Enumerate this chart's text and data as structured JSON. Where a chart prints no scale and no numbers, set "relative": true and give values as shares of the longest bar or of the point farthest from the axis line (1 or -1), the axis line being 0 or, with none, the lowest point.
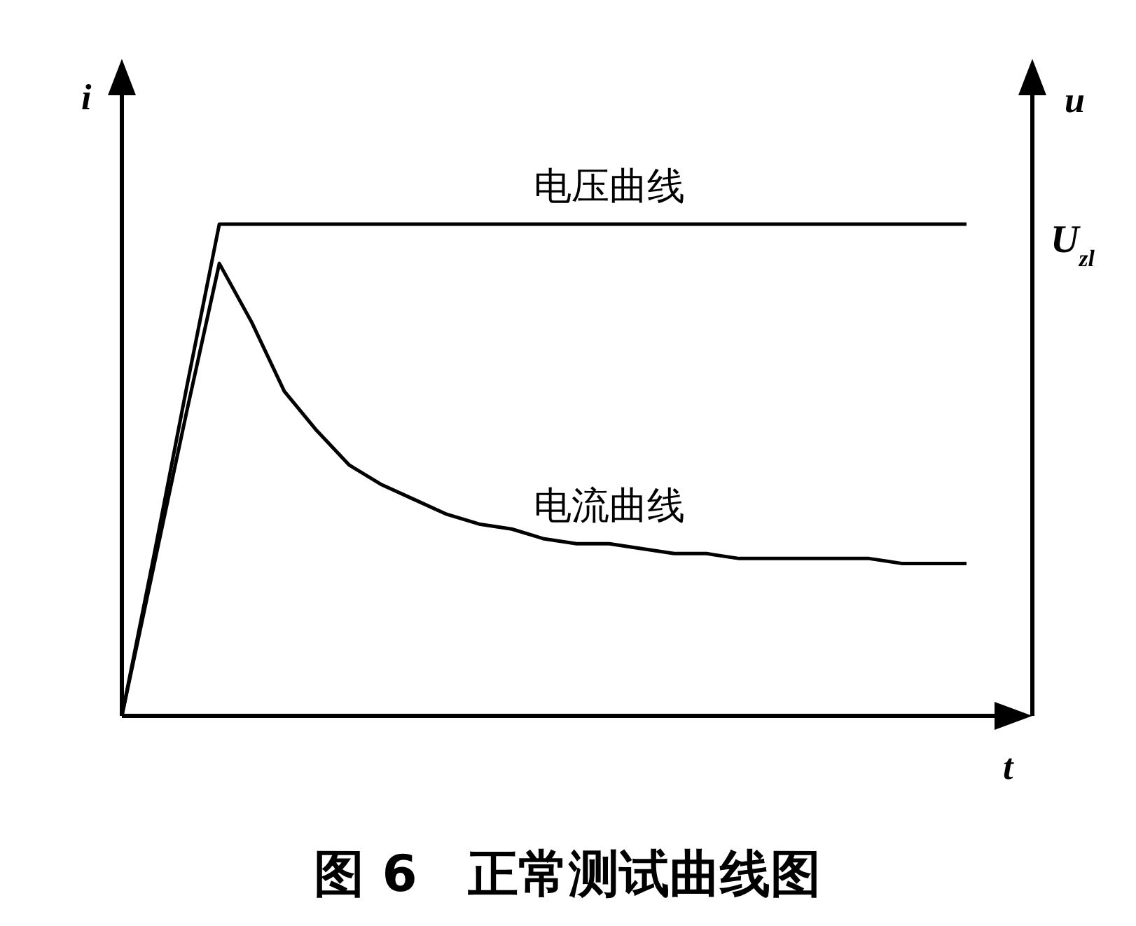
{
  "chart_data": {
    "type": "line",
    "relative": true,
    "title": "图 6　正常测试曲线图",
    "xlabel": "t",
    "ylabel": "i",
    "y2label": "u",
    "annotations": [
      "U$_{zl}$"
    ],
    "grid": false,
    "legend": false,
    "marker": "none",
    "line_style": "solid",
    "categories": [
      null,
      null,
      null,
      null,
      null,
      null,
      null,
      null,
      null,
      null,
      null,
      null,
      null,
      null,
      null,
      null,
      null,
      null,
      null,
      null,
      null,
      null,
      null,
      null,
      null,
      null,
      null
    ],
    "series": [
      {
        "name": "电压曲线",
        "color": "#000000",
        "values": [
          0,
          0.33,
          0.67,
          1,
          1,
          1,
          1,
          1,
          1,
          1,
          1,
          1,
          1,
          1,
          1,
          1,
          1,
          1,
          1,
          1,
          1,
          1,
          1,
          1,
          1,
          1,
          1
        ]
      },
      {
        "name": "电流曲线",
        "color": "#000000",
        "values": [
          0,
          0.31,
          0.62,
          0.92,
          0.8,
          0.66,
          0.58,
          0.51,
          0.47,
          0.44,
          0.41,
          0.39,
          0.38,
          0.36,
          0.35,
          0.35,
          0.34,
          0.33,
          0.33,
          0.32,
          0.32,
          0.32,
          0.32,
          0.32,
          0.31,
          0.31,
          0.31
        ]
      }
    ]
  }
}
